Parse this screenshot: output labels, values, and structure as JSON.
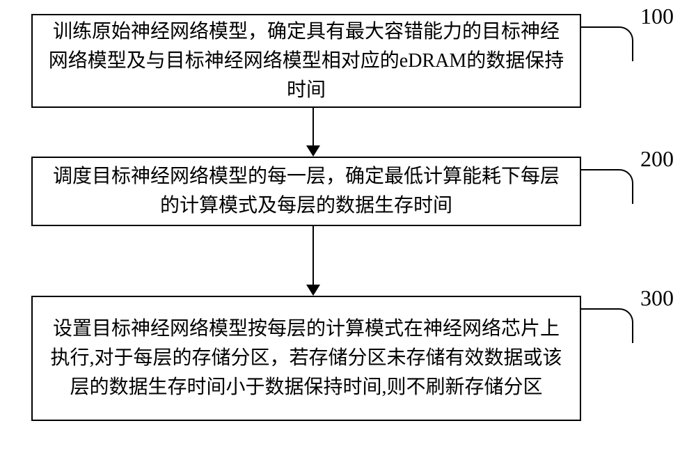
{
  "flowchart": {
    "type": "flowchart",
    "background_color": "#ffffff",
    "border_color": "#000000",
    "text_color": "#000000",
    "font_size_text": 28,
    "font_size_label": 32,
    "line_height": 1.5,
    "border_width": 2,
    "arrow_head_size": 16,
    "steps": [
      {
        "id": "100",
        "text": "训练原始神经网络模型，确定具有最大容错能力的目标神经网络模型及与目标神经网络模型相对应的eDRAM的数据保持时间"
      },
      {
        "id": "200",
        "text": "调度目标神经网络模型的每一层，确定最低计算能耗下每层的计算模式及每层的数据生存时间"
      },
      {
        "id": "300",
        "text": "设置目标神经网络模型按每层的计算模式在神经网络芯片上执行,对于每层的存储分区，若存储分区未存储有效数据或该层的数据生存时间小于数据保持时间,则不刷新存储分区"
      }
    ]
  }
}
